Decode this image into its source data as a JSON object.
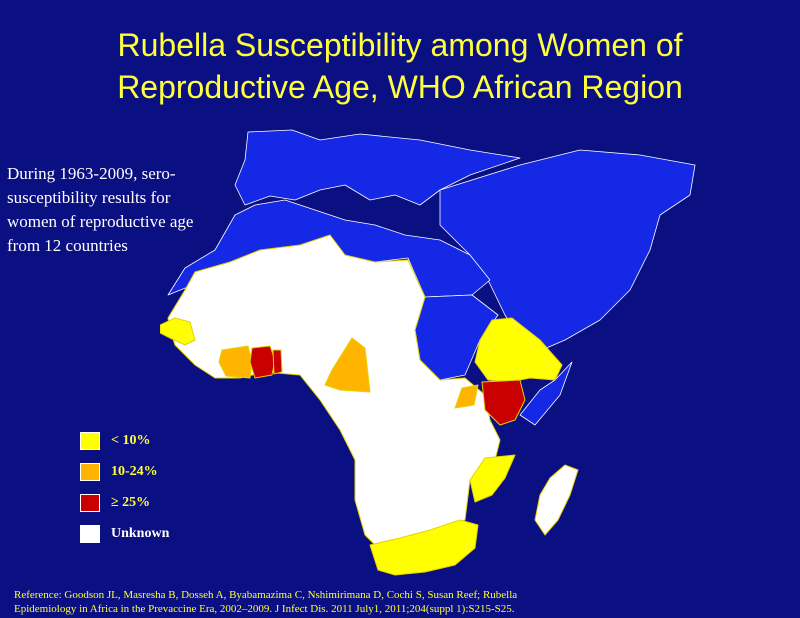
{
  "title": {
    "line1": "Rubella Susceptibility among Women of",
    "line2": "Reproductive Age, WHO African Region"
  },
  "intro_text": "During 1963-2009, sero-susceptibility results for women of reproductive age from 12 countries",
  "legend": [
    {
      "label": "< 10%",
      "color": "#ffff00"
    },
    {
      "label": "10-24%",
      "color": "#ffb400"
    },
    {
      "label": "≥ 25%",
      "color": "#c80000"
    },
    {
      "label": "Unknown",
      "color": "#ffffff"
    }
  ],
  "colors": {
    "background": "#0a0f82",
    "title": "#ffff3c",
    "non_region": "#1428e6",
    "borders": "#ffff00"
  },
  "reference": {
    "line1": "Reference:  Goodson JL, Masresha B, Dosseh A, Byabamazima C, Nshimirimana D, Cochi S, Susan Reef; Rubella",
    "line2": "Epidemiology in Africa in the Prevaccine Era, 2002–2009. J Infect Dis. 2011 July1, 2011;204(suppl 1):S215-S25."
  }
}
